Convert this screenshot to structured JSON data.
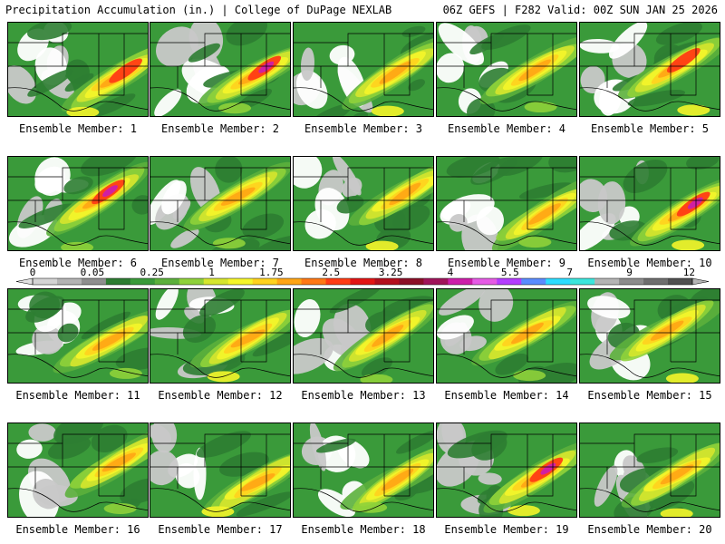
{
  "header": {
    "left_title": "Precipitation Accumulation (in.) | College of DuPage NEXLAB",
    "right_title": "06Z GEFS | F282 Valid: 00Z SUN JAN 25 2026"
  },
  "member_label_prefix": "Ensemble Member: ",
  "members": [
    1,
    2,
    3,
    4,
    5,
    6,
    7,
    8,
    9,
    10,
    11,
    12,
    13,
    14,
    15,
    16,
    17,
    18,
    19,
    20
  ],
  "legend": {
    "tick_labels": [
      "0",
      "0.05",
      "0.25",
      "1",
      "1.75",
      "2.5",
      "3.25",
      "4",
      "5.5",
      "7",
      "9",
      "12"
    ],
    "colors": [
      "#d4d4d4",
      "#b4b4b4",
      "#8f8f8f",
      "#2e7d32",
      "#3a9a3a",
      "#5cb03c",
      "#8fd13a",
      "#d6e62e",
      "#f5f52a",
      "#ffd21e",
      "#ffa514",
      "#ff7814",
      "#ff3c14",
      "#e31414",
      "#b40f1e",
      "#8c0f28",
      "#a0145a",
      "#cd1eaa",
      "#e65ae6",
      "#b43cff",
      "#5a8cff",
      "#2ddcff",
      "#3ce6dc",
      "#b4b4b4",
      "#8c8c8c",
      "#6e6e6e",
      "#505050"
    ]
  }
}
